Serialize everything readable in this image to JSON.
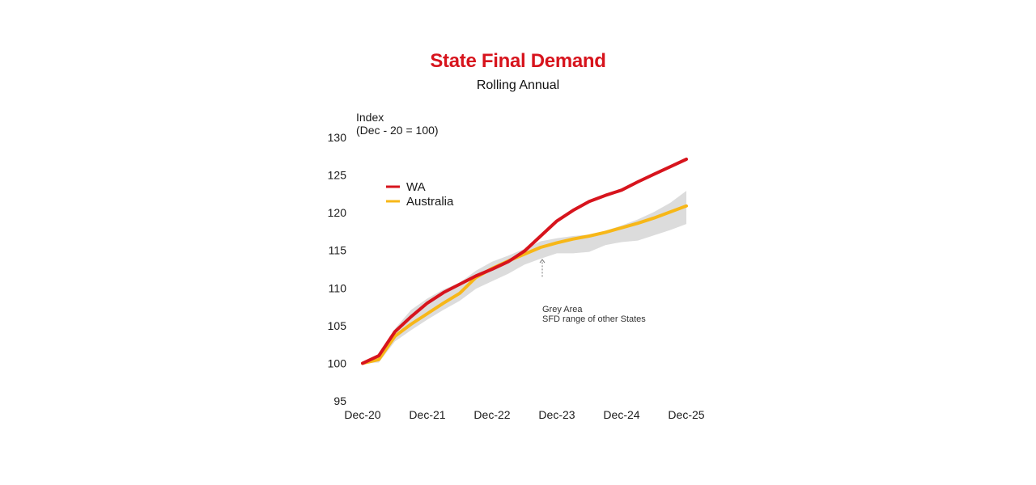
{
  "colors": {
    "title": "#d7141d",
    "wa": "#d7141d",
    "australia": "#f7b718",
    "band": "#dcdcdc",
    "text": "#1a1a1a",
    "annotation": "#333333"
  },
  "chart_data": {
    "type": "line",
    "title": "State Final Demand",
    "subtitle": "Rolling Annual",
    "ylabel_line1": "Index",
    "ylabel_line2": "(Dec - 20 = 100)",
    "xlabel": "",
    "ylim": [
      95,
      130
    ],
    "yticks": [
      95,
      100,
      105,
      110,
      115,
      120,
      125,
      130
    ],
    "xticks": [
      "Dec-20",
      "Dec-21",
      "Dec-22",
      "Dec-23",
      "Dec-24",
      "Dec-25"
    ],
    "grid": false,
    "legend_position": "top-left",
    "quarters": [
      "Dec-20",
      "Mar-21",
      "Jun-21",
      "Sep-21",
      "Dec-21",
      "Mar-22",
      "Jun-22",
      "Sep-22",
      "Dec-22",
      "Mar-23",
      "Jun-23",
      "Sep-23",
      "Dec-23",
      "Mar-24",
      "Jun-24",
      "Sep-24",
      "Dec-24",
      "Mar-25",
      "Jun-25",
      "Sep-25",
      "Dec-25"
    ],
    "series": [
      {
        "name": "WA",
        "color": "#d7141d",
        "values": [
          100.0,
          101.0,
          104.2,
          106.2,
          108.0,
          109.4,
          110.5,
          111.6,
          112.5,
          113.5,
          114.9,
          116.9,
          118.9,
          120.3,
          121.5,
          122.3,
          123.0,
          124.1,
          125.1,
          126.1,
          127.1
        ]
      },
      {
        "name": "Australia",
        "color": "#f7b718",
        "values": [
          100.0,
          100.5,
          103.6,
          105.2,
          106.6,
          108.0,
          109.3,
          111.4,
          112.6,
          113.6,
          114.5,
          115.4,
          116.0,
          116.5,
          116.9,
          117.4,
          118.0,
          118.6,
          119.3,
          120.1,
          120.9
        ]
      }
    ],
    "band": {
      "name": "Grey Area",
      "upper": [
        100.0,
        101.2,
        104.6,
        107.1,
        108.6,
        109.8,
        110.7,
        112.3,
        113.5,
        114.3,
        115.2,
        116.2,
        116.6,
        116.9,
        117.1,
        117.6,
        118.3,
        119.1,
        120.1,
        121.3,
        122.9
      ],
      "lower": [
        100.0,
        100.1,
        102.9,
        104.4,
        105.8,
        107.1,
        108.3,
        109.9,
        110.9,
        111.9,
        113.1,
        113.9,
        114.6,
        114.6,
        114.8,
        115.7,
        116.1,
        116.3,
        117.0,
        117.7,
        118.5
      ]
    },
    "annotation": {
      "line1": "Grey Area",
      "line2": "SFD range of other States",
      "x_quarter": "Sep-23",
      "arrow_to_y": 114.0,
      "arrow_from_y": 111.5
    }
  }
}
